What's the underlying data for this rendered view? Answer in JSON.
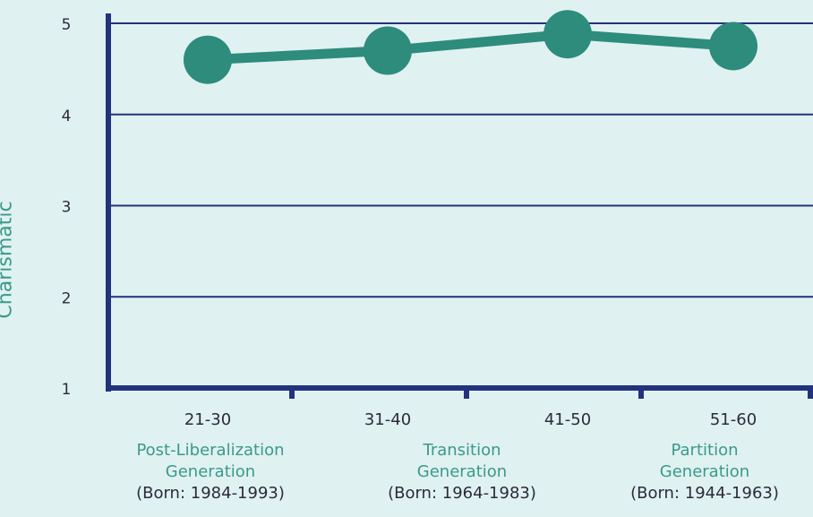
{
  "chart_data": {
    "type": "line",
    "ylabel": "Charismatic",
    "xlabel": "",
    "categories": [
      "21-30",
      "31-40",
      "41-50",
      "51-60"
    ],
    "series": [
      {
        "values": [
          4.6,
          4.7,
          4.88,
          4.75
        ]
      }
    ],
    "ylim": [
      1,
      5
    ],
    "yticks": [
      1,
      2,
      3,
      4,
      5
    ],
    "grid": true,
    "colors": {
      "line": "#2d8c7c",
      "axis": "#23327e",
      "grid": "#23327e",
      "label": "#3a9a89",
      "tick": "#2b2b3a"
    },
    "generations": [
      {
        "name_line1": "Post-Liberalization",
        "name_line2": "Generation",
        "born": "(Born: 1984-1993)"
      },
      {
        "name_line1": "Transition",
        "name_line2": "Generation",
        "born": "(Born: 1964-1983)"
      },
      {
        "name_line1": "Partition",
        "name_line2": "Generation",
        "born": "(Born: 1944-1963)"
      }
    ]
  }
}
